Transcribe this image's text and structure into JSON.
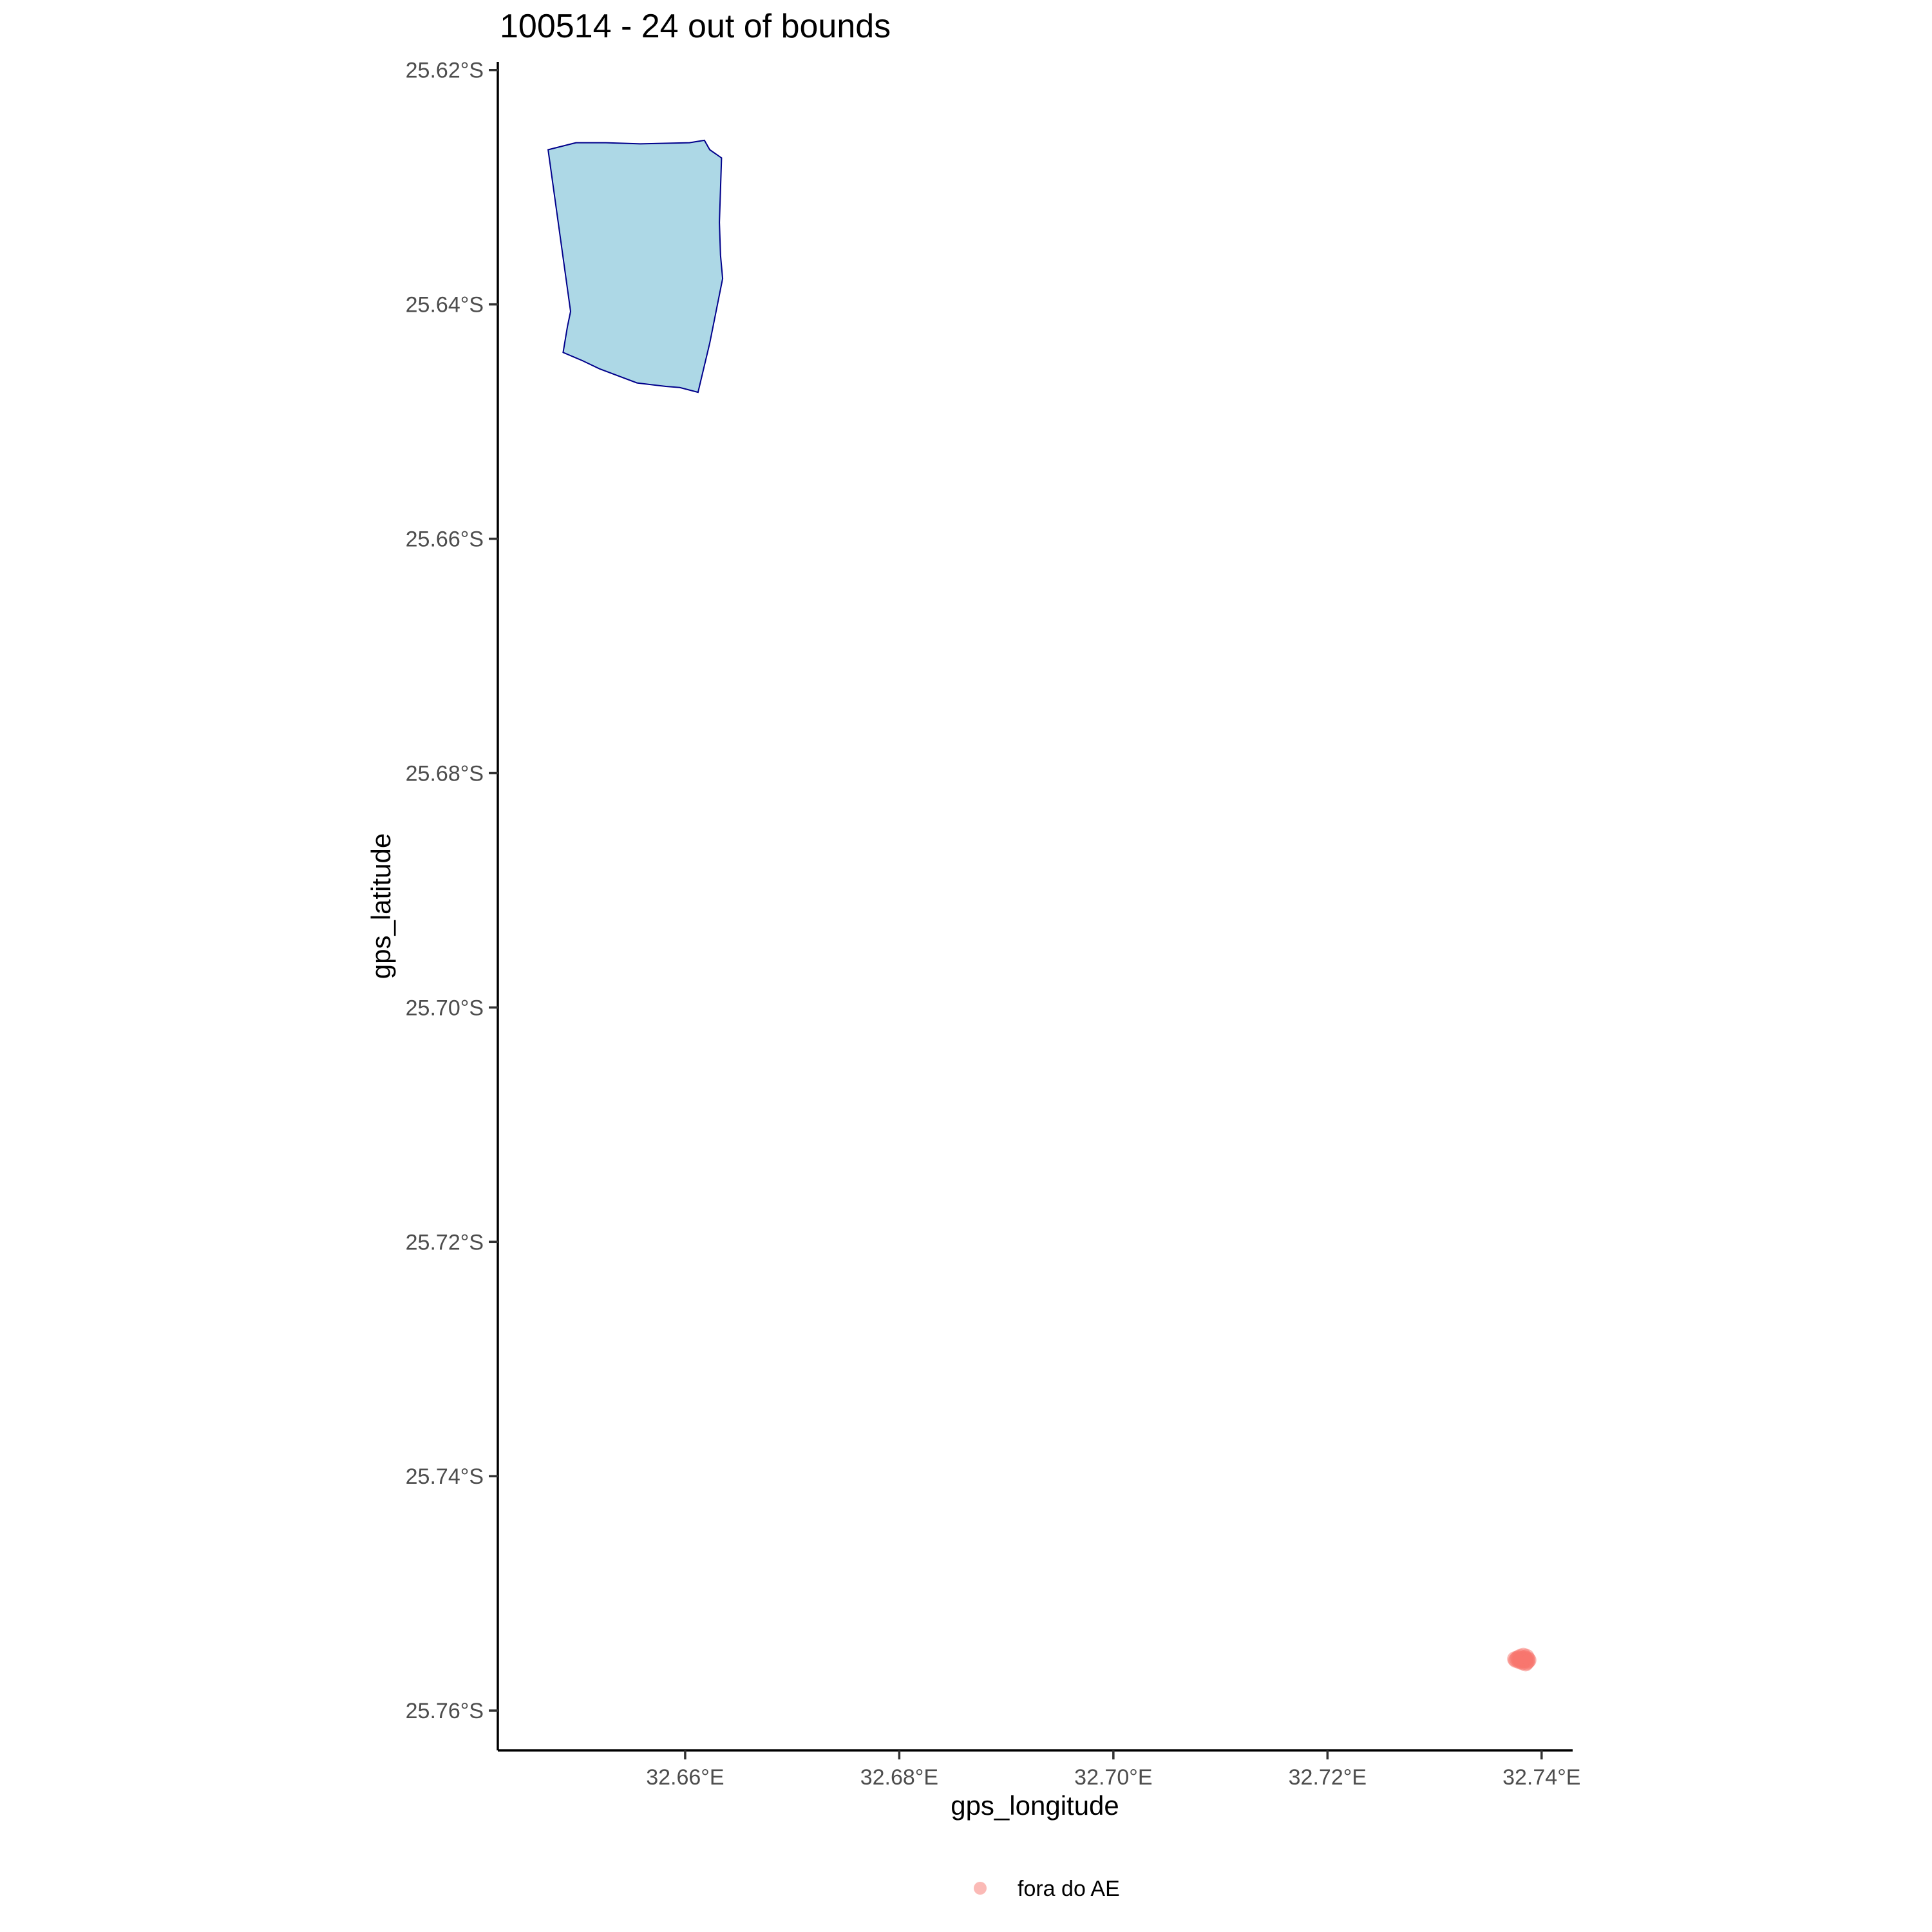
{
  "chart_data": {
    "type": "scatter",
    "title": "100514 - 24 out of bounds",
    "xlabel": "gps_longitude",
    "ylabel": "gps_latitude",
    "xlim": [
      32.6425,
      32.7429
    ],
    "ylim": [
      -25.7634,
      -25.6193
    ],
    "x_ticks": [
      {
        "value": 32.66,
        "label": "32.66°E"
      },
      {
        "value": 32.68,
        "label": "32.68°E"
      },
      {
        "value": 32.7,
        "label": "32.70°E"
      },
      {
        "value": 32.72,
        "label": "32.72°E"
      },
      {
        "value": 32.74,
        "label": "32.74°E"
      }
    ],
    "y_ticks": [
      {
        "value": -25.62,
        "label": "25.62°S"
      },
      {
        "value": -25.64,
        "label": "25.64°S"
      },
      {
        "value": -25.66,
        "label": "25.66°S"
      },
      {
        "value": -25.68,
        "label": "25.68°S"
      },
      {
        "value": -25.7,
        "label": "25.70°S"
      },
      {
        "value": -25.72,
        "label": "25.72°S"
      },
      {
        "value": -25.74,
        "label": "25.74°S"
      },
      {
        "value": -25.76,
        "label": "25.76°S"
      }
    ],
    "grid": false,
    "legend_position": "bottom",
    "area": {
      "fill": "#ADD8E6",
      "stroke": "#00008B",
      "polygon": [
        [
          32.6472,
          -25.6268
        ],
        [
          32.6498,
          -25.6262
        ],
        [
          32.6526,
          -25.6262
        ],
        [
          32.6558,
          -25.6263
        ],
        [
          32.6604,
          -25.6262
        ],
        [
          32.6618,
          -25.626
        ],
        [
          32.6623,
          -25.6268
        ],
        [
          32.6634,
          -25.6275
        ],
        [
          32.6632,
          -25.633
        ],
        [
          32.6633,
          -25.6358
        ],
        [
          32.6635,
          -25.6378
        ],
        [
          32.6623,
          -25.6433
        ],
        [
          32.6612,
          -25.6475
        ],
        [
          32.6595,
          -25.6471
        ],
        [
          32.6582,
          -25.647
        ],
        [
          32.6555,
          -25.6467
        ],
        [
          32.652,
          -25.6455
        ],
        [
          32.6504,
          -25.6448
        ],
        [
          32.6486,
          -25.6441
        ],
        [
          32.649,
          -25.6419
        ],
        [
          32.6493,
          -25.6406
        ],
        [
          32.6472,
          -25.6268
        ]
      ]
    },
    "series": [
      {
        "name": "fora do AE",
        "color": "#F8766D",
        "points": [
          [
            32.7375,
            -25.7556
          ],
          [
            32.7378,
            -25.7555
          ],
          [
            32.738,
            -25.7557
          ],
          [
            32.7383,
            -25.7553
          ],
          [
            32.7385,
            -25.7556
          ],
          [
            32.7387,
            -25.7558
          ],
          [
            32.7382,
            -25.7559
          ],
          [
            32.7379,
            -25.7558
          ],
          [
            32.7386,
            -25.7554
          ],
          [
            32.7384,
            -25.7557
          ],
          [
            32.7381,
            -25.7556
          ],
          [
            32.7376,
            -25.7557
          ],
          [
            32.7388,
            -25.7557
          ],
          [
            32.7385,
            -25.756
          ],
          [
            32.7383,
            -25.7556
          ],
          [
            32.738,
            -25.7554
          ],
          [
            32.7377,
            -25.7556
          ],
          [
            32.7386,
            -25.7559
          ],
          [
            32.7384,
            -25.7555
          ],
          [
            32.7382,
            -25.7557
          ],
          [
            32.7379,
            -25.7556
          ],
          [
            32.7387,
            -25.7556
          ],
          [
            32.7381,
            -25.7558
          ],
          [
            32.7385,
            -25.7557
          ]
        ]
      }
    ]
  }
}
